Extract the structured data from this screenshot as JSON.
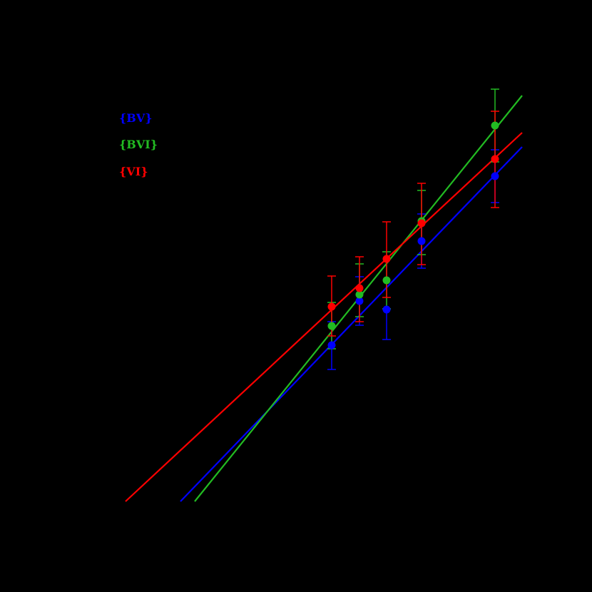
{
  "chart_data": {
    "type": "scatter",
    "title": "",
    "xlabel": "",
    "ylabel": "",
    "note": "Axes, ticks and labels are not visible (black on black). Coordinates are given in an arbitrary unit space where x = pixel column and y = 830 - pixel row.",
    "xlim": [
      150,
      760
    ],
    "ylim": [
      100,
      720
    ],
    "grid": false,
    "legend_position": "upper-left",
    "x": [
      465,
      504,
      542,
      591,
      694
    ],
    "series": [
      {
        "name": "{BV}",
        "color": "#0000ff",
        "values": [
          346,
          408,
          396,
          492,
          583
        ],
        "err_low": [
          312,
          374,
          354,
          454,
          546
        ],
        "err_high": [
          379,
          442,
          397,
          530,
          620
        ],
        "fit_line": {
          "x": [
            253,
            732
          ],
          "y": [
            127,
            624
          ]
        }
      },
      {
        "name": "{BVI}",
        "color": "#22bb22",
        "values": [
          373,
          417,
          437,
          520,
          654
        ],
        "err_low": [
          341,
          386,
          397,
          473,
          603
        ],
        "err_high": [
          406,
          460,
          477,
          563,
          705
        ],
        "fit_line": {
          "x": [
            273,
            732
          ],
          "y": [
            127,
            696
          ]
        }
      },
      {
        "name": "{VI}",
        "color": "#ff0000",
        "values": [
          400,
          426,
          467,
          517,
          607
        ],
        "err_low": [
          359,
          379,
          413,
          459,
          539
        ],
        "err_high": [
          443,
          470,
          519,
          573,
          674
        ],
        "fit_line": {
          "x": [
            176,
            732
          ],
          "y": [
            127,
            644
          ]
        }
      }
    ]
  },
  "legend": {
    "items": [
      {
        "label": "{BV}",
        "color": "#0000ff"
      },
      {
        "label": "{BVI}",
        "color": "#22bb22"
      },
      {
        "label": "{VI}",
        "color": "#ff0000"
      }
    ]
  }
}
